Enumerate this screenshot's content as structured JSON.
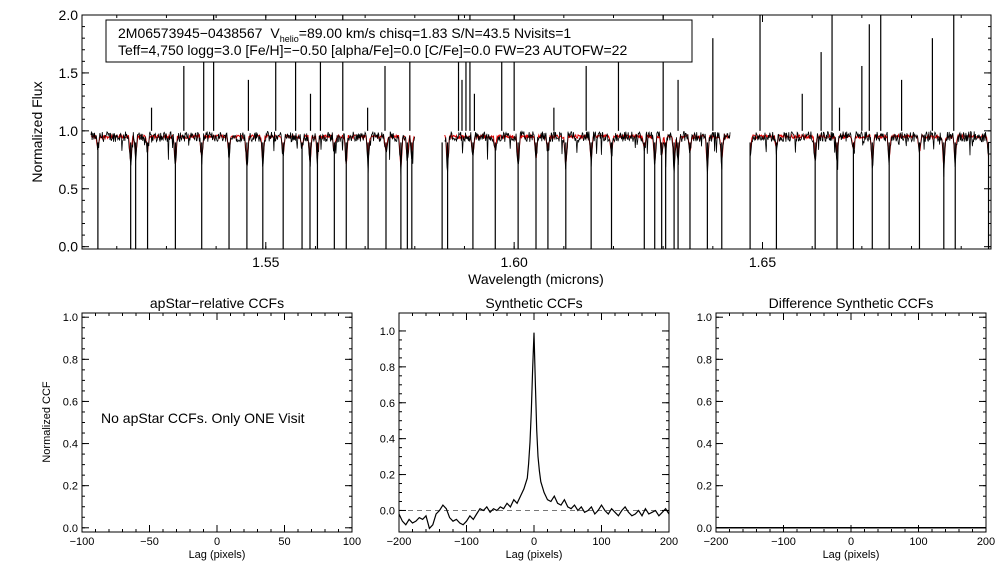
{
  "chart_data": [
    {
      "type": "line",
      "id": "spectrum",
      "xlabel": "Wavelength (microns)",
      "ylabel": "Normalized Flux",
      "xlim": [
        1.513,
        1.696
      ],
      "ylim": [
        -0.02,
        2.0
      ],
      "xticks": [
        "1.55",
        "1.60",
        "1.65"
      ],
      "xtick_values": [
        1.55,
        1.6,
        1.65
      ],
      "yticks": [
        "0.0",
        "0.5",
        "1.0",
        "1.5",
        "2.0"
      ],
      "ytick_values": [
        0.0,
        0.5,
        1.0,
        1.5,
        2.0
      ],
      "info": {
        "line1_star": "2M06573945−0438567",
        "line1_vhelio_v": "V",
        "line1_vhelio_sub": "helio",
        "line1_vhelio_rest": "=89.00 km/s  chisq=1.83  S/N=43.5  Nvisits=1",
        "line2": "Teff=4,750 logg=3.0 [Fe/H]=−0.50 [alpha/Fe]=0.0 [C/Fe]=0.0 FW=23 AUTOFW=22"
      },
      "chips": [
        [
          1.5148,
          1.58
        ],
        [
          1.586,
          1.6435
        ],
        [
          1.6475,
          1.6955
        ]
      ],
      "continuum": 0.95,
      "series": [
        {
          "name": "observed spectrum",
          "color": "#000000"
        },
        {
          "name": "synthetic model",
          "color": "#e00000"
        }
      ],
      "absorption_lines": [
        1.5162,
        1.5228,
        1.5238,
        1.5262,
        1.5318,
        1.5371,
        1.5426,
        1.5462,
        1.5494,
        1.5535,
        1.5573,
        1.5589,
        1.5604,
        1.5638,
        1.5662,
        1.5706,
        1.5742,
        1.5772,
        1.5785,
        1.5794,
        1.5855,
        1.5866,
        1.5917,
        1.5962,
        1.6008,
        1.6044,
        1.6068,
        1.6104,
        1.6155,
        1.6196,
        1.6262,
        1.6283,
        1.6297,
        1.6305,
        1.6322,
        1.633,
        1.6354,
        1.6389,
        1.6418,
        1.6475,
        1.6528,
        1.6606,
        1.665,
        1.6683,
        1.6721,
        1.6755,
        1.6816,
        1.6865,
        1.6888,
        1.6955
      ],
      "emission_spikes": [
        1.527,
        1.5335,
        1.5375,
        1.5395,
        1.5465,
        1.552,
        1.556,
        1.559,
        1.561,
        1.5655,
        1.5705,
        1.574,
        1.579,
        1.5888,
        1.5895,
        1.5903,
        1.5911,
        1.592,
        1.5975,
        1.6,
        1.608,
        1.6145,
        1.621,
        1.63,
        1.633,
        1.64,
        1.6495,
        1.658,
        1.6618,
        1.664,
        1.6655,
        1.67,
        1.6715,
        1.6738,
        1.678,
        1.6842,
        1.6885
      ]
    },
    {
      "type": "line",
      "id": "apstar-ccf",
      "title": "apStar−relative CCFs",
      "xlabel": "Lag (pixels)",
      "ylabel": "Normalized CCF",
      "xlim": [
        -100,
        100
      ],
      "ylim": [
        -0.02,
        1.02
      ],
      "xticks": [
        "−100",
        "−50",
        "0",
        "50",
        "100"
      ],
      "xtick_values": [
        -100,
        -50,
        0,
        50,
        100
      ],
      "yticks": [
        "0.0",
        "0.2",
        "0.4",
        "0.6",
        "0.8",
        "1.0"
      ],
      "ytick_values": [
        0.0,
        0.2,
        0.4,
        0.6,
        0.8,
        1.0
      ],
      "annotation": "No apStar CCFs.  Only ONE Visit"
    },
    {
      "type": "line",
      "id": "synthetic-ccf",
      "title": "Synthetic CCFs",
      "xlabel": "Lag (pixels)",
      "xlim": [
        -200,
        200
      ],
      "ylim": [
        -0.12,
        1.1
      ],
      "xticks": [
        "−200",
        "−100",
        "0",
        "100",
        "200"
      ],
      "xtick_values": [
        -200,
        -100,
        0,
        100,
        200
      ],
      "yticks": [
        "0.0",
        "0.2",
        "0.4",
        "0.6",
        "0.8",
        "1.0"
      ],
      "ytick_values": [
        0.0,
        0.2,
        0.4,
        0.6,
        0.8,
        1.0
      ],
      "zero_line": 0.0,
      "series": [
        {
          "name": "synthetic CCF",
          "x": [
            -200,
            -195,
            -190,
            -185,
            -180,
            -175,
            -170,
            -165,
            -160,
            -155,
            -150,
            -145,
            -140,
            -135,
            -130,
            -125,
            -120,
            -115,
            -110,
            -105,
            -100,
            -95,
            -90,
            -85,
            -80,
            -75,
            -70,
            -65,
            -60,
            -55,
            -50,
            -45,
            -40,
            -35,
            -30,
            -25,
            -20,
            -15,
            -10,
            -8,
            -6,
            -4,
            -2,
            0,
            2,
            4,
            6,
            8,
            10,
            15,
            20,
            25,
            30,
            35,
            40,
            45,
            50,
            55,
            60,
            65,
            70,
            75,
            80,
            85,
            90,
            95,
            100,
            105,
            110,
            115,
            120,
            125,
            130,
            135,
            140,
            145,
            150,
            155,
            160,
            165,
            170,
            175,
            180,
            185,
            190,
            195,
            200
          ],
          "y": [
            -0.02,
            -0.06,
            -0.08,
            -0.05,
            -0.07,
            -0.06,
            -0.04,
            -0.05,
            -0.03,
            -0.1,
            -0.08,
            -0.02,
            0.0,
            0.03,
            0.01,
            -0.04,
            -0.06,
            -0.05,
            -0.07,
            -0.08,
            -0.06,
            -0.03,
            -0.05,
            -0.02,
            0.01,
            0.0,
            0.02,
            -0.01,
            0.01,
            0.0,
            0.02,
            0.01,
            0.04,
            0.02,
            0.06,
            0.04,
            0.08,
            0.12,
            0.18,
            0.26,
            0.38,
            0.55,
            0.78,
            0.99,
            0.7,
            0.45,
            0.3,
            0.22,
            0.16,
            0.1,
            0.06,
            0.05,
            0.08,
            0.04,
            0.03,
            0.06,
            0.02,
            0.01,
            0.03,
            0.0,
            0.02,
            -0.01,
            0.0,
            0.02,
            -0.02,
            0.0,
            0.03,
            0.0,
            -0.02,
            0.01,
            -0.01,
            -0.03,
            0.0,
            0.02,
            -0.01,
            -0.03,
            -0.02,
            0.0,
            -0.03,
            0.01,
            -0.02,
            -0.01,
            0.0,
            -0.03,
            -0.01,
            0.01,
            -0.02
          ]
        }
      ]
    },
    {
      "type": "line",
      "id": "difference-ccf",
      "title": "Difference Synthetic CCFs",
      "xlabel": "Lag (pixels)",
      "xlim": [
        -200,
        200
      ],
      "ylim": [
        -0.02,
        1.02
      ],
      "xticks": [
        "−200",
        "−100",
        "0",
        "100",
        "200"
      ],
      "xtick_values": [
        -200,
        -100,
        0,
        100,
        200
      ],
      "yticks": [
        "0.0",
        "0.2",
        "0.4",
        "0.6",
        "0.8",
        "1.0"
      ],
      "ytick_values": [
        0.0,
        0.2,
        0.4,
        0.6,
        0.8,
        1.0
      ],
      "series": [
        {
          "name": "difference CCF",
          "x": [
            -200,
            200
          ],
          "y": [
            0.0,
            0.0
          ]
        }
      ]
    }
  ]
}
